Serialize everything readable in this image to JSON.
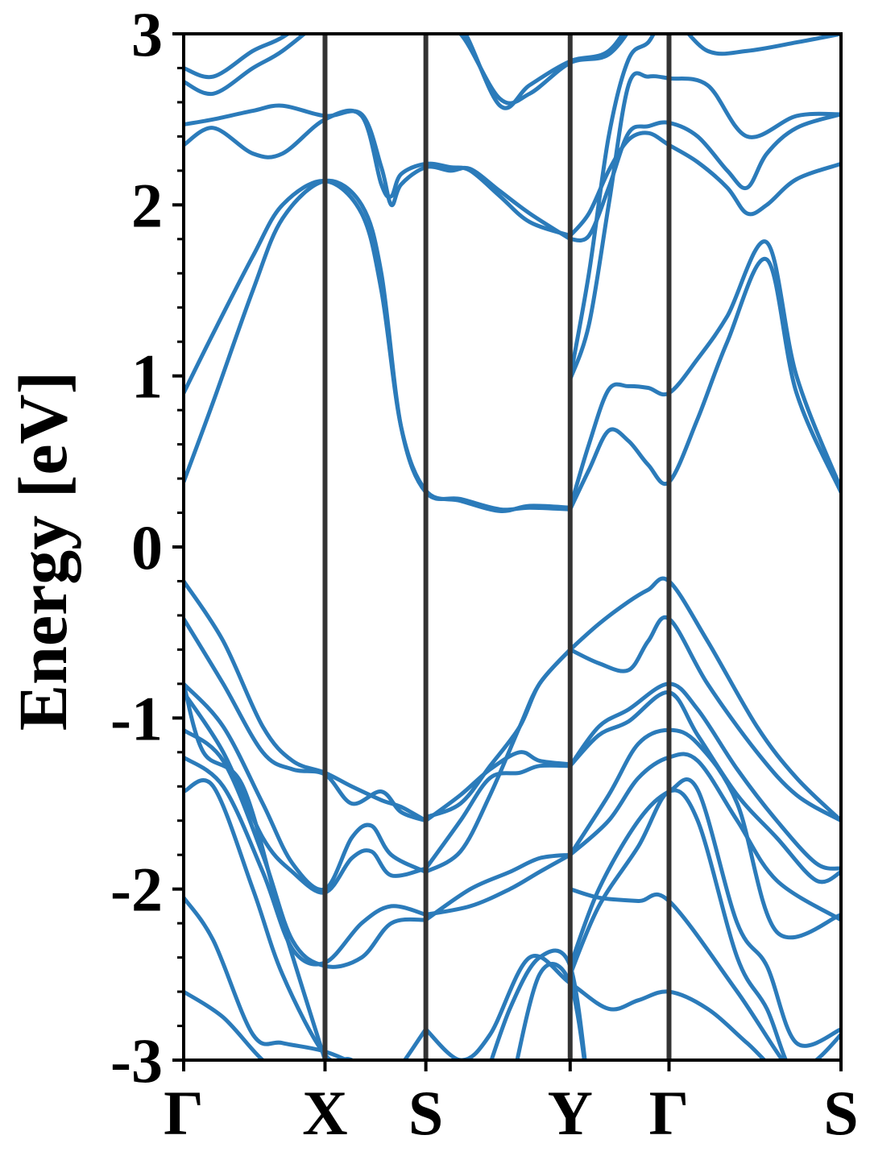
{
  "chart_data": {
    "type": "line",
    "title": "",
    "xlabel": "",
    "ylabel": "Energy [eV]",
    "ylim": [
      -3,
      3
    ],
    "xlim": [
      0,
      6.65
    ],
    "yticks": [
      {
        "value": 3,
        "label": "3"
      },
      {
        "value": 2,
        "label": "2"
      },
      {
        "value": 1,
        "label": "1"
      },
      {
        "value": 0,
        "label": "0"
      },
      {
        "value": -1,
        "label": "-1"
      },
      {
        "value": -2,
        "label": "-2"
      },
      {
        "value": -3,
        "label": "-3"
      }
    ],
    "kpoints": [
      {
        "x": 0.0,
        "label": "Γ"
      },
      {
        "x": 1.43,
        "label": "X"
      },
      {
        "x": 2.45,
        "label": "S"
      },
      {
        "x": 3.91,
        "label": "Y"
      },
      {
        "x": 4.91,
        "label": "Γ"
      },
      {
        "x": 6.65,
        "label": "S"
      }
    ],
    "grid": false,
    "legend": "none",
    "colors": {
      "band": "#2b7bba",
      "kline": "#333333",
      "axis": "#000000"
    },
    "series": [
      {
        "x": [
          0,
          0.3,
          0.7,
          1.0,
          1.43,
          1.8,
          2.0,
          2.2,
          2.45,
          2.8,
          3.2,
          3.5,
          3.91
        ],
        "y": [
          0.38,
          0.85,
          1.5,
          1.92,
          2.14,
          2.0,
          1.6,
          0.7,
          0.32,
          0.28,
          0.22,
          0.23,
          0.22
        ]
      },
      {
        "x": [
          0,
          0.3,
          0.7,
          1.0,
          1.43,
          1.8,
          2.0,
          2.2,
          2.45,
          2.8,
          3.2,
          3.5,
          3.91
        ],
        "y": [
          0.9,
          1.25,
          1.7,
          2.0,
          2.14,
          1.95,
          1.5,
          0.7,
          0.33,
          0.27,
          0.21,
          0.24,
          0.23
        ]
      },
      {
        "x": [
          3.91,
          4.1,
          4.3,
          4.5,
          4.7,
          4.91,
          5.2,
          5.5,
          5.9,
          6.2,
          6.65
        ],
        "y": [
          0.22,
          0.45,
          0.68,
          0.62,
          0.48,
          0.38,
          0.75,
          1.2,
          1.68,
          0.9,
          0.32
        ]
      },
      {
        "x": [
          3.91,
          4.1,
          4.3,
          4.5,
          4.7,
          4.91,
          5.2,
          5.5,
          5.9,
          6.2,
          6.65
        ],
        "y": [
          0.23,
          0.6,
          0.92,
          0.94,
          0.93,
          0.9,
          1.1,
          1.35,
          1.78,
          1.0,
          0.34
        ]
      },
      {
        "x": [
          0,
          0.3,
          0.7,
          1.0,
          1.43,
          1.8,
          2.0,
          2.1,
          2.2,
          2.45,
          2.7,
          2.9,
          3.2,
          3.5,
          3.91
        ],
        "y": [
          2.35,
          2.45,
          2.3,
          2.3,
          2.5,
          2.52,
          2.12,
          2.05,
          2.18,
          2.24,
          2.22,
          2.2,
          2.05,
          1.9,
          1.82
        ]
      },
      {
        "x": [
          0,
          0.3,
          0.7,
          1.0,
          1.43,
          1.8,
          2.0,
          2.1,
          2.2,
          2.45,
          2.7,
          2.9,
          3.2,
          3.5,
          3.91
        ],
        "y": [
          2.47,
          2.5,
          2.55,
          2.58,
          2.52,
          2.53,
          2.22,
          2.0,
          2.12,
          2.22,
          2.2,
          2.21,
          2.08,
          1.95,
          1.8
        ]
      },
      {
        "x": [
          3.91,
          4.1,
          4.3,
          4.5,
          4.7,
          4.91,
          5.2,
          5.5,
          5.7,
          5.9,
          6.2,
          6.65
        ],
        "y": [
          1.82,
          1.95,
          2.2,
          2.38,
          2.42,
          2.35,
          2.25,
          2.1,
          1.95,
          2.0,
          2.15,
          2.24
        ]
      },
      {
        "x": [
          3.91,
          4.1,
          4.3,
          4.5,
          4.7,
          4.91,
          5.2,
          5.5,
          5.7,
          5.9,
          6.2,
          6.65
        ],
        "y": [
          1.8,
          1.82,
          2.1,
          2.42,
          2.46,
          2.48,
          2.4,
          2.2,
          2.1,
          2.3,
          2.45,
          2.53
        ]
      },
      {
        "x": [
          3.91,
          4.1,
          4.3,
          4.5,
          4.7,
          4.91,
          5.3,
          5.7,
          6.2,
          6.65
        ],
        "y": [
          0.98,
          1.3,
          2.0,
          2.7,
          2.75,
          2.74,
          2.7,
          2.4,
          2.52,
          2.53
        ]
      },
      {
        "x": [
          3.91,
          4.1,
          4.3,
          4.5,
          4.7,
          4.91,
          5.3,
          5.7,
          6.2,
          6.65
        ],
        "y": [
          0.99,
          1.6,
          2.4,
          2.85,
          2.95,
          3.1,
          2.9,
          2.9,
          2.95,
          3.0
        ]
      },
      {
        "x": [
          0,
          0.3,
          0.7,
          1.0,
          1.43
        ],
        "y": [
          2.72,
          2.65,
          2.8,
          2.9,
          3.1
        ]
      },
      {
        "x": [
          0,
          0.3,
          0.7,
          1.0,
          1.43
        ],
        "y": [
          2.8,
          2.75,
          2.9,
          2.98,
          3.15
        ]
      },
      {
        "x": [
          2.45,
          2.8,
          3.2,
          3.5,
          3.91,
          4.3,
          4.6
        ],
        "y": [
          3.1,
          3.0,
          2.62,
          2.65,
          2.83,
          2.88,
          3.1
        ]
      },
      {
        "x": [
          2.45,
          2.8,
          3.2,
          3.5,
          3.91,
          4.3,
          4.6
        ],
        "y": [
          3.15,
          3.05,
          2.58,
          2.7,
          2.84,
          2.9,
          3.15
        ]
      },
      {
        "x": [
          0,
          0.4,
          0.8,
          1.1,
          1.43,
          1.7,
          2.0,
          2.2,
          2.45
        ],
        "y": [
          -0.2,
          -0.55,
          -1.05,
          -1.25,
          -1.32,
          -1.4,
          -1.48,
          -1.52,
          -1.6
        ]
      },
      {
        "x": [
          0,
          0.4,
          0.8,
          1.1,
          1.43,
          1.7,
          2.0,
          2.2,
          2.45
        ],
        "y": [
          -0.42,
          -0.8,
          -1.2,
          -1.3,
          -1.33,
          -1.5,
          -1.43,
          -1.55,
          -1.6
        ]
      },
      {
        "x": [
          2.45,
          2.8,
          3.1,
          3.4,
          3.6,
          3.91
        ],
        "y": [
          -1.6,
          -1.45,
          -1.3,
          -1.2,
          -1.25,
          -1.27
        ]
      },
      {
        "x": [
          2.45,
          2.8,
          3.1,
          3.4,
          3.6,
          3.91
        ],
        "y": [
          -1.58,
          -1.5,
          -1.28,
          -1.05,
          -0.8,
          -0.6
        ]
      },
      {
        "x": [
          3.91,
          4.2,
          4.5,
          4.7,
          4.91,
          5.3,
          5.8,
          6.2,
          6.65
        ],
        "y": [
          -0.6,
          -0.45,
          -0.32,
          -0.25,
          -0.2,
          -0.55,
          -1.05,
          -1.35,
          -1.6
        ]
      },
      {
        "x": [
          3.91,
          4.2,
          4.5,
          4.7,
          4.91,
          5.3,
          5.8,
          6.2,
          6.65
        ],
        "y": [
          -0.6,
          -0.68,
          -0.72,
          -0.55,
          -0.42,
          -0.8,
          -1.2,
          -1.45,
          -1.6
        ]
      },
      {
        "x": [
          0,
          0.4,
          0.8,
          1.1,
          1.43,
          1.7,
          1.9,
          2.1,
          2.45
        ],
        "y": [
          -0.8,
          -1.05,
          -1.5,
          -1.85,
          -2.0,
          -1.7,
          -1.63,
          -1.8,
          -1.9
        ]
      },
      {
        "x": [
          0,
          0.4,
          0.8,
          1.1,
          1.43,
          1.7,
          1.9,
          2.1,
          2.45
        ],
        "y": [
          -0.85,
          -1.2,
          -1.7,
          -1.9,
          -2.02,
          -1.82,
          -1.78,
          -1.92,
          -1.88
        ]
      },
      {
        "x": [
          2.45,
          2.8,
          3.1,
          3.4,
          3.6,
          3.91
        ],
        "y": [
          -1.9,
          -1.78,
          -1.45,
          -1.05,
          -0.8,
          -0.6
        ]
      },
      {
        "x": [
          2.45,
          2.8,
          3.1,
          3.4,
          3.6,
          3.91
        ],
        "y": [
          -1.88,
          -1.6,
          -1.35,
          -1.32,
          -1.28,
          -1.28
        ]
      },
      {
        "x": [
          3.91,
          4.2,
          4.5,
          4.91,
          5.2,
          5.6,
          6.0,
          6.4,
          6.65
        ],
        "y": [
          -1.28,
          -1.05,
          -0.95,
          -0.8,
          -0.95,
          -1.3,
          -1.6,
          -1.85,
          -1.88
        ]
      },
      {
        "x": [
          3.91,
          4.2,
          4.5,
          4.91,
          5.2,
          5.6,
          6.0,
          6.4,
          6.65
        ],
        "y": [
          -1.28,
          -1.1,
          -1.02,
          -0.85,
          -1.1,
          -1.45,
          -1.7,
          -1.95,
          -1.9
        ]
      },
      {
        "x": [
          0,
          0.4,
          0.8,
          1.1,
          1.43,
          1.8,
          2.1,
          2.45
        ],
        "y": [
          -1.07,
          -1.25,
          -1.8,
          -2.3,
          -2.45,
          -2.4,
          -2.2,
          -2.18
        ]
      },
      {
        "x": [
          0,
          0.4,
          0.8,
          1.1,
          1.43,
          1.8,
          2.1,
          2.45
        ],
        "y": [
          -1.23,
          -1.4,
          -1.9,
          -2.35,
          -2.43,
          -2.2,
          -2.1,
          -2.15
        ]
      },
      {
        "x": [
          2.45,
          2.9,
          3.3,
          3.6,
          3.91
        ],
        "y": [
          -2.18,
          -2.0,
          -1.9,
          -1.82,
          -1.8
        ]
      },
      {
        "x": [
          2.45,
          2.9,
          3.3,
          3.6,
          3.91
        ],
        "y": [
          -2.15,
          -2.1,
          -2.0,
          -1.9,
          -1.8
        ]
      },
      {
        "x": [
          3.91,
          4.3,
          4.6,
          4.91,
          5.2,
          5.6,
          6.0,
          6.65
        ],
        "y": [
          -1.8,
          -1.45,
          -1.15,
          -1.07,
          -1.15,
          -1.5,
          -2.25,
          -2.15
        ]
      },
      {
        "x": [
          3.91,
          4.3,
          4.6,
          4.91,
          5.2,
          5.6,
          6.0,
          6.65
        ],
        "y": [
          -1.8,
          -1.6,
          -1.35,
          -1.23,
          -1.25,
          -1.6,
          -1.95,
          -2.18
        ]
      },
      {
        "x": [
          3.91,
          4.2,
          4.6,
          4.91,
          5.2,
          5.6,
          5.9,
          6.2,
          6.65
        ],
        "y": [
          -2.45,
          -2.0,
          -1.6,
          -1.43,
          -1.42,
          -2.2,
          -2.45,
          -2.9,
          -2.82
        ]
      },
      {
        "x": [
          3.91,
          4.2,
          4.6,
          4.91,
          5.2,
          5.6,
          5.9,
          6.2,
          6.65
        ],
        "y": [
          -2.5,
          -2.1,
          -1.75,
          -1.43,
          -1.6,
          -2.4,
          -2.7,
          -3.1,
          -3.05
        ]
      },
      {
        "x": [
          3.91,
          4.2,
          4.6,
          4.91,
          5.6,
          6.2,
          6.65
        ],
        "y": [
          -2.0,
          -2.05,
          -2.07,
          -2.07,
          -2.6,
          -3.1,
          -3.2
        ]
      },
      {
        "x": [
          0,
          0.2,
          0.6,
          1.0,
          1.43
        ],
        "y": [
          -0.8,
          -1.2,
          -1.4,
          -2.2,
          -3.0
        ]
      },
      {
        "x": [
          0,
          0.3,
          0.7,
          1.0,
          1.43,
          1.7,
          2.0,
          2.45
        ],
        "y": [
          -1.43,
          -1.4,
          -2.0,
          -2.5,
          -2.97,
          -3.0,
          -3.15,
          -2.82
        ]
      },
      {
        "x": [
          0,
          0.3,
          0.7,
          1.0,
          1.43,
          1.8,
          2.1
        ],
        "y": [
          -2.05,
          -2.3,
          -2.85,
          -2.9,
          -2.95,
          -3.05,
          -3.2
        ]
      },
      {
        "x": [
          0,
          0.4,
          0.8,
          1.1,
          1.43
        ],
        "y": [
          -2.6,
          -2.75,
          -3.0,
          -3.1,
          -3.2
        ]
      },
      {
        "x": [
          2.45,
          2.8,
          3.1,
          3.5,
          3.91,
          4.3,
          4.6,
          4.91,
          5.3,
          5.7,
          6.1,
          6.4,
          6.65
        ],
        "y": [
          -2.82,
          -3.0,
          -2.85,
          -2.4,
          -2.55,
          -2.7,
          -2.65,
          -2.6,
          -2.7,
          -2.9,
          -3.1,
          -3.0,
          -2.85
        ]
      },
      {
        "x": [
          3.0,
          3.3,
          3.6,
          3.91,
          4.1
        ],
        "y": [
          -3.2,
          -2.7,
          -2.4,
          -2.45,
          -3.2
        ]
      },
      {
        "x": [
          3.3,
          3.6,
          3.91,
          4.1
        ],
        "y": [
          -3.2,
          -2.5,
          -2.55,
          -3.2
        ]
      }
    ]
  }
}
